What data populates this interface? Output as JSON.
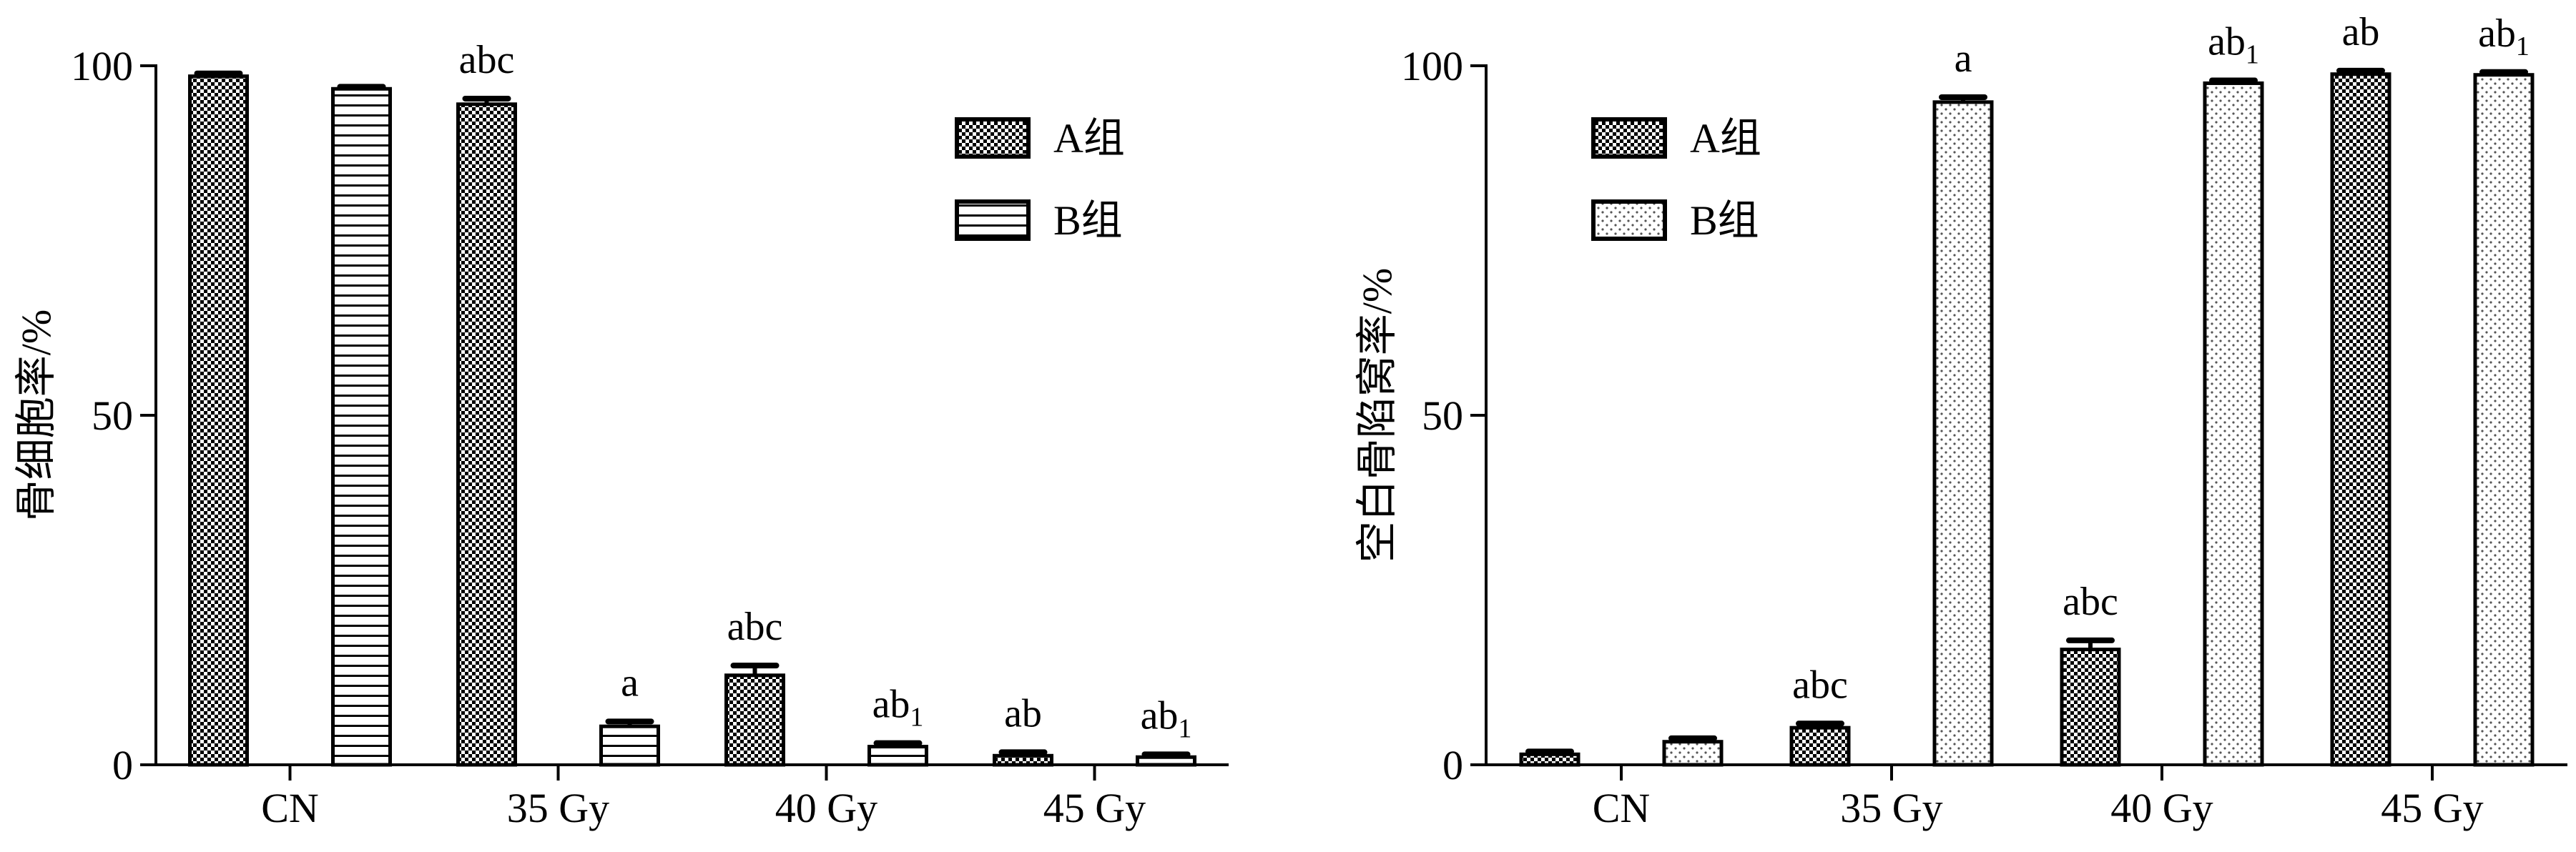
{
  "chart_data": [
    {
      "type": "bar",
      "categories": [
        "CN",
        "35 Gy",
        "40 Gy",
        "45 Gy"
      ],
      "ylabel": "骨细胞率/%",
      "xlabel": "",
      "ylim": [
        0,
        100
      ],
      "yticks": [
        "0",
        "50",
        "100"
      ],
      "legend_position": "top-right",
      "series": [
        {
          "name": "A组",
          "pattern": "checker",
          "values": [
            98.5,
            94.5,
            12.8,
            1.3
          ],
          "errors": [
            0.4,
            0.8,
            1.4,
            0.5
          ],
          "labels": [
            {
              "main": "",
              "sub": ""
            },
            {
              "main": "abc",
              "sub": ""
            },
            {
              "main": "abc",
              "sub": ""
            },
            {
              "main": "ab",
              "sub": ""
            }
          ]
        },
        {
          "name": "B组",
          "pattern": "hstripes",
          "values": [
            96.7,
            5.5,
            2.6,
            1.1
          ],
          "errors": [
            0.3,
            0.7,
            0.5,
            0.4
          ],
          "labels": [
            {
              "main": "",
              "sub": ""
            },
            {
              "main": "a",
              "sub": ""
            },
            {
              "main": "ab",
              "sub": "1"
            },
            {
              "main": "ab",
              "sub": "1"
            }
          ]
        }
      ]
    },
    {
      "type": "bar",
      "categories": [
        "CN",
        "35 Gy",
        "40 Gy",
        "45 Gy"
      ],
      "ylabel": "空白骨陷窝率/%",
      "xlabel": "",
      "ylim": [
        0,
        100
      ],
      "yticks": [
        "0",
        "50",
        "100"
      ],
      "legend_position": "top-left",
      "series": [
        {
          "name": "A组",
          "pattern": "checker",
          "values": [
            1.5,
            5.3,
            16.5,
            98.8
          ],
          "errors": [
            0.4,
            0.6,
            1.3,
            0.5
          ],
          "labels": [
            {
              "main": "",
              "sub": ""
            },
            {
              "main": "abc",
              "sub": ""
            },
            {
              "main": "abc",
              "sub": ""
            },
            {
              "main": "ab",
              "sub": ""
            }
          ]
        },
        {
          "name": "B组",
          "pattern": "dots",
          "values": [
            3.3,
            94.8,
            97.5,
            98.7
          ],
          "errors": [
            0.5,
            0.7,
            0.4,
            0.4
          ],
          "labels": [
            {
              "main": "",
              "sub": ""
            },
            {
              "main": "a",
              "sub": ""
            },
            {
              "main": "ab",
              "sub": "1"
            },
            {
              "main": "ab",
              "sub": "1"
            }
          ]
        }
      ]
    }
  ]
}
